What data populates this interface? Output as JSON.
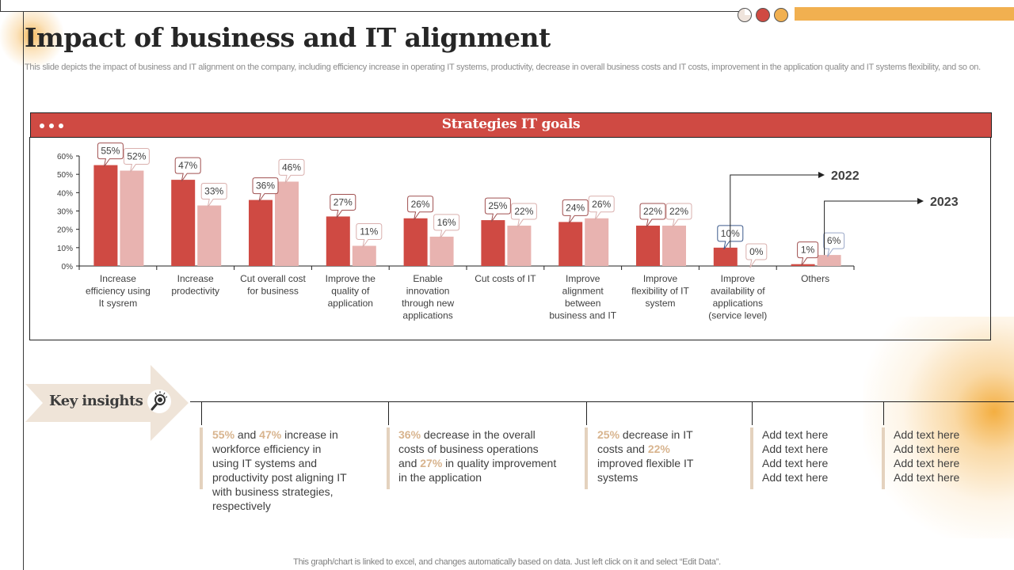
{
  "slide": {
    "title": "Impact of business and IT alignment",
    "subtitle": "This slide depicts the impact of business and IT alignment on the company, including efficiency increase in operating IT systems, productivity, decrease in overall business costs and IT costs, improvement in the application quality and IT systems flexibility, and so on.",
    "footer_note": "This graph/chart is linked to excel,  and changes automatically based on data. Just left click on it and select “Edit Data”."
  },
  "colors": {
    "header_red": "#cf4a43",
    "series_2022": "#cf4a43",
    "series_2023": "#e8b3b0",
    "accent_orange": "#f1b050",
    "insight_highlight": "#d8b48e",
    "insight_bar": "#e4d2be"
  },
  "chart_panel": {
    "title": "Strategies IT goals"
  },
  "chart_data": {
    "type": "bar",
    "title": "Strategies IT goals",
    "xlabel": "",
    "ylabel": "",
    "ylim": [
      0,
      60
    ],
    "yticks": [
      "0%",
      "10%",
      "20%",
      "30%",
      "40%",
      "50%",
      "60%"
    ],
    "ytick_values": [
      0,
      10,
      20,
      30,
      40,
      50,
      60
    ],
    "grid": false,
    "categories": [
      [
        "Increase",
        "efficiency using",
        "It sysrem"
      ],
      [
        "Increase",
        "prodectivity"
      ],
      [
        "Cut overall cost",
        "for business"
      ],
      [
        "Improve the",
        "quality of",
        "application"
      ],
      [
        "Enable",
        "innovation",
        "through new",
        "applications"
      ],
      [
        "Cut costs of IT"
      ],
      [
        "Improve",
        "alignment",
        "between",
        "business and IT"
      ],
      [
        "Improve",
        "flexibility of IT",
        "system"
      ],
      [
        "Improve",
        "availability of",
        "applications",
        "(service level)"
      ],
      [
        "Others"
      ]
    ],
    "series": [
      {
        "name": "2022",
        "values": [
          55,
          47,
          36,
          27,
          26,
          25,
          24,
          22,
          10,
          1
        ]
      },
      {
        "name": "2023",
        "values": [
          52,
          33,
          46,
          11,
          16,
          22,
          26,
          22,
          0,
          6
        ]
      }
    ],
    "value_format": "percent",
    "legend": {
      "placement": "right",
      "style": "callout-arrows",
      "entries": [
        "2022",
        "2023"
      ]
    }
  },
  "key_insights": {
    "title": "Key insights",
    "icon": "lightbulb-magnifier-icon",
    "items": [
      {
        "parts": [
          {
            "t": "55%",
            "hl": true
          },
          {
            "t": " and ",
            "hl": false
          },
          {
            "t": "47%",
            "hl": true
          },
          {
            "t": "  increase in workforce efficiency in using IT systems and productivity post aligning IT with business strategies, respectively",
            "hl": false
          }
        ]
      },
      {
        "parts": [
          {
            "t": "36%",
            "hl": true
          },
          {
            "t": " decrease in the overall costs of business operations and ",
            "hl": false
          },
          {
            "t": "27%",
            "hl": true
          },
          {
            "t": " in quality improvement in the application",
            "hl": false
          }
        ]
      },
      {
        "parts": [
          {
            "t": "25%",
            "hl": true
          },
          {
            "t": " decrease in IT costs and ",
            "hl": false
          },
          {
            "t": "22%",
            "hl": true
          },
          {
            "t": " improved flexible  IT systems",
            "hl": false
          }
        ]
      },
      {
        "lines": [
          "Add text here",
          "Add text here",
          "Add text here",
          "Add text here"
        ]
      },
      {
        "lines": [
          "Add text here",
          "Add text here",
          "Add text here",
          "Add text here"
        ]
      }
    ]
  }
}
